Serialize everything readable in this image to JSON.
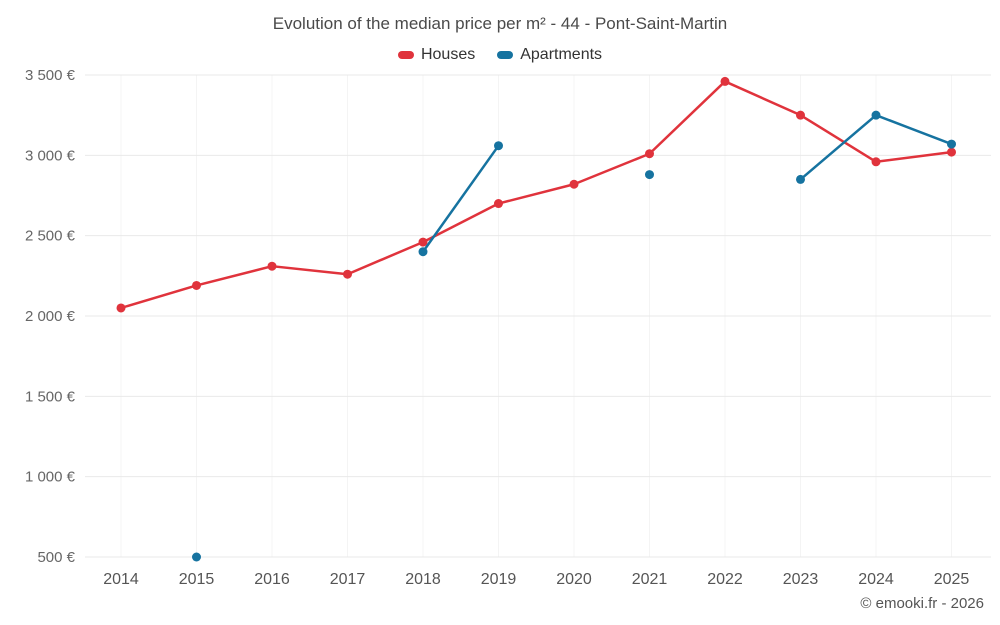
{
  "chart_data": {
    "type": "line",
    "title": "Evolution of the median price per m² - 44 - Pont-Saint-Martin",
    "categories": [
      "2014",
      "2015",
      "2016",
      "2017",
      "2018",
      "2019",
      "2020",
      "2021",
      "2022",
      "2023",
      "2024",
      "2025"
    ],
    "series": [
      {
        "name": "Houses",
        "color": "#e0333c",
        "values": [
          2050,
          2190,
          2310,
          2260,
          2460,
          2700,
          2820,
          3010,
          3460,
          3250,
          2960,
          3020
        ]
      },
      {
        "name": "Apartments",
        "color": "#1673a0",
        "values": [
          null,
          500,
          null,
          null,
          2400,
          3060,
          null,
          2880,
          null,
          2850,
          3250,
          3070
        ]
      }
    ],
    "ylim": [
      500,
      3500
    ],
    "y_ticks": [
      {
        "value": 3500,
        "label": "3 500 €"
      },
      {
        "value": 3000,
        "label": "3 000 €"
      },
      {
        "value": 2500,
        "label": "2 500 €"
      },
      {
        "value": 2000,
        "label": "2 000 €"
      },
      {
        "value": 1500,
        "label": "1 500 €"
      },
      {
        "value": 1000,
        "label": "1 000 €"
      },
      {
        "value": 500,
        "label": "500 €"
      }
    ],
    "grid": true,
    "legend_position": "top"
  },
  "footer": {
    "copyright": "© emooki.fr - 2026"
  }
}
